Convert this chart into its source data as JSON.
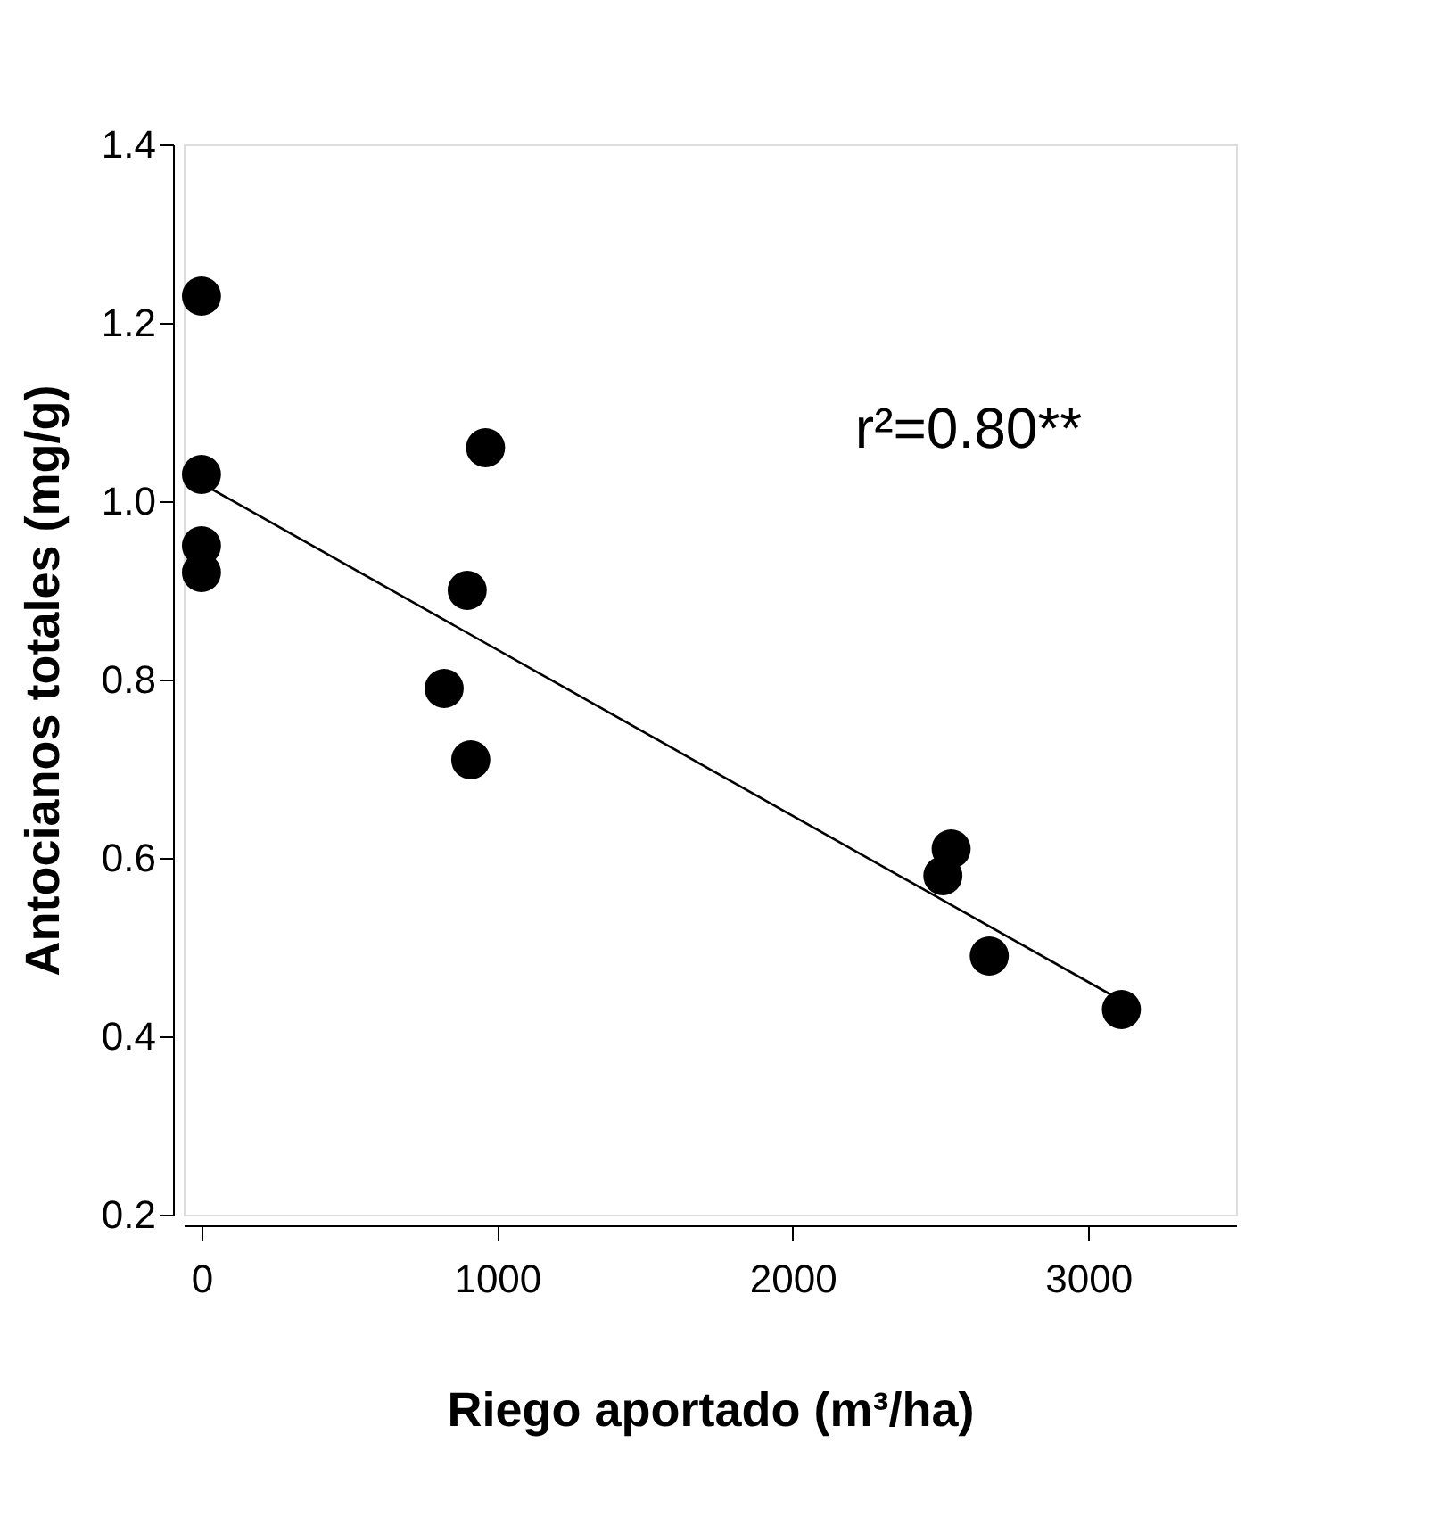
{
  "chart_data": {
    "type": "scatter",
    "xlabel": "Riego aportado (m³/ha)",
    "ylabel": "Antocianos totales (mg/g)",
    "xlim": [
      -60,
      3500
    ],
    "xticks": [
      0,
      1000,
      2000,
      3000
    ],
    "ylim": [
      0.2,
      1.4
    ],
    "yticks": [
      0.2,
      0.4,
      0.6,
      0.8,
      {
        "value": 1,
        "label": "1.0"
      },
      1.2,
      1.4
    ],
    "grid": false,
    "annotations": [
      "r²=0.80**"
    ],
    "series": [
      {
        "color": "#000000",
        "marker": "circle",
        "x": [
          0,
          0,
          0,
          0,
          821,
          911,
          899,
          961,
          2508,
          2536,
          2665,
          3112
        ],
        "values": [
          1.23,
          1.03,
          0.95,
          0.92,
          0.79,
          0.71,
          0.9,
          1.06,
          0.58,
          0.61,
          0.49,
          0.43
        ]
      },
      {
        "type": "line",
        "color": "#000000",
        "x": [
          0,
          3112
        ],
        "values": [
          1.02,
          0.44
        ]
      }
    ]
  }
}
